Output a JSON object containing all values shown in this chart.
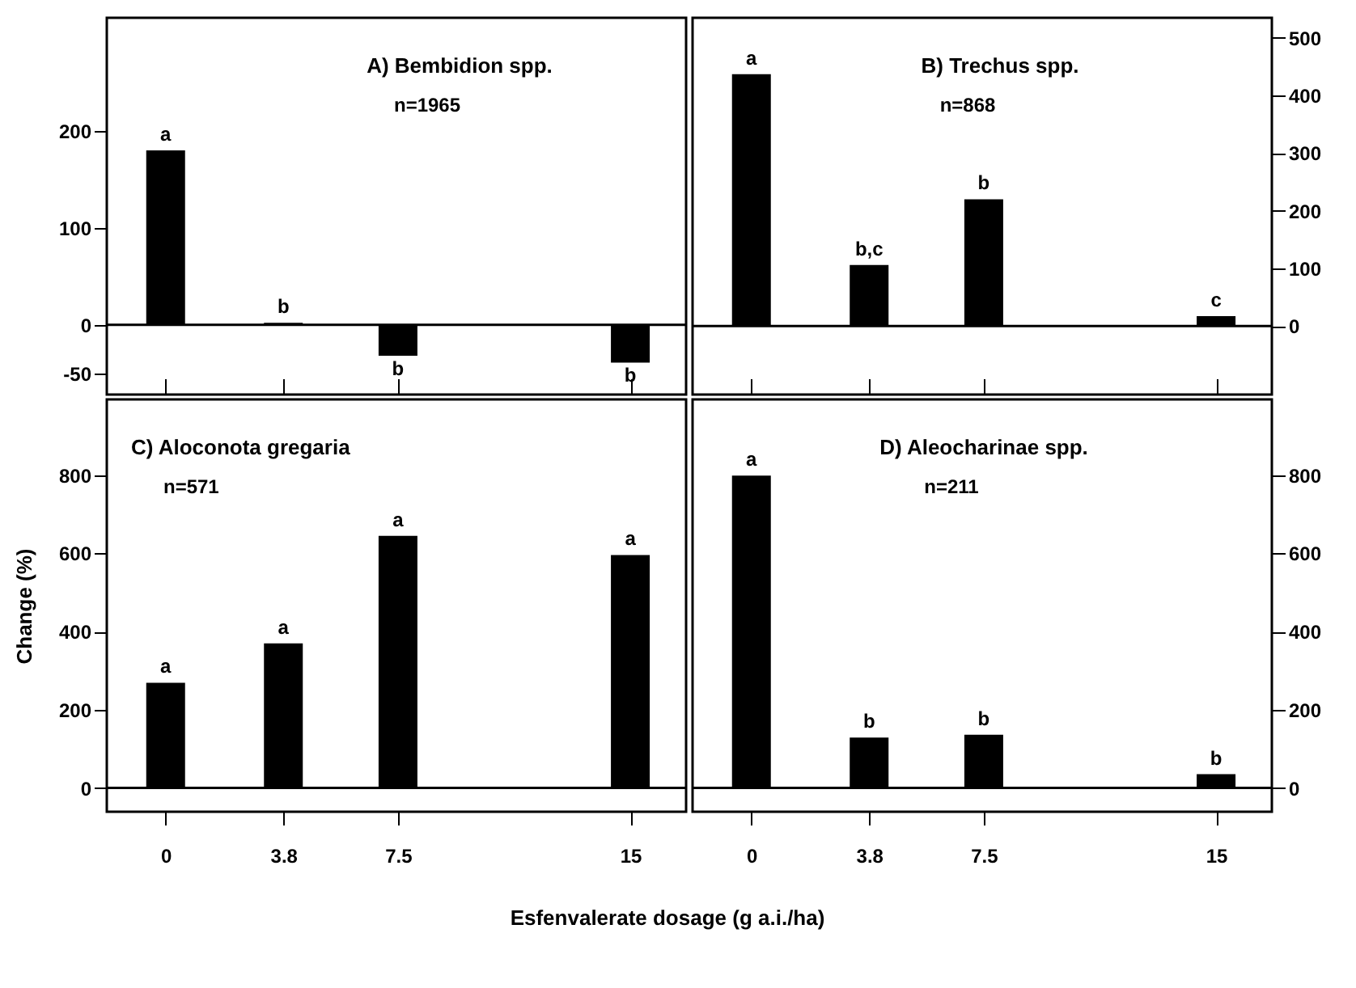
{
  "chart_data": [
    {
      "type": "bar",
      "title": "A) Bembidion spp.",
      "subtitle": "n=1965",
      "x": [
        0,
        3.8,
        7.5,
        15
      ],
      "values": [
        180,
        2,
        -32,
        -39
      ],
      "value_labels": [
        "a",
        "b",
        "b",
        "b"
      ],
      "color": "#000000",
      "xlim": [
        -1.9,
        16.8
      ],
      "xticks": [
        0,
        3.8,
        7.5,
        15
      ],
      "ylim": [
        -72,
        317
      ],
      "yticks": [
        -50,
        0,
        100,
        200
      ],
      "tick_labels": "y"
    },
    {
      "type": "bar",
      "title": "B) Trechus spp.",
      "subtitle": "n=868",
      "x": [
        0,
        3.8,
        7.5,
        15
      ],
      "values": [
        437,
        106,
        220,
        17
      ],
      "value_labels": [
        "a",
        "b,c",
        "b",
        "c"
      ],
      "color": "#000000",
      "xlim": [
        -1.9,
        16.8
      ],
      "xticks": [
        0,
        3.8,
        7.5,
        15
      ],
      "ylim": [
        -119,
        535
      ],
      "yticks": [
        0,
        100,
        200,
        300,
        400,
        500
      ],
      "tick_labels": "y"
    },
    {
      "type": "bar",
      "title": "C) Aloconota gregaria",
      "subtitle": "n=571",
      "xlabel": "Esfenvalerate dosage (g a.i./ha)",
      "ylabel": "Change (%)",
      "x": [
        0,
        3.8,
        7.5,
        15
      ],
      "values": [
        269,
        370,
        645,
        596
      ],
      "value_labels": [
        "a",
        "a",
        "a",
        "a"
      ],
      "color": "#000000",
      "xlim": [
        -1.9,
        16.8
      ],
      "xticks": [
        0,
        3.8,
        7.5,
        15
      ],
      "ylim": [
        -61,
        994
      ],
      "yticks": [
        0,
        200,
        400,
        600,
        800
      ]
    },
    {
      "type": "bar",
      "title": "D) Aleocharinae spp.",
      "subtitle": "n=211",
      "x": [
        0,
        3.8,
        7.5,
        15
      ],
      "values": [
        799,
        129,
        136,
        35
      ],
      "value_labels": [
        "a",
        "b",
        "b",
        "b"
      ],
      "color": "#000000",
      "xlim": [
        -1.9,
        16.8
      ],
      "xticks": [
        0,
        3.8,
        7.5,
        15
      ],
      "ylim": [
        -61,
        994
      ],
      "yticks": [
        0,
        200,
        400,
        600,
        800
      ]
    }
  ]
}
